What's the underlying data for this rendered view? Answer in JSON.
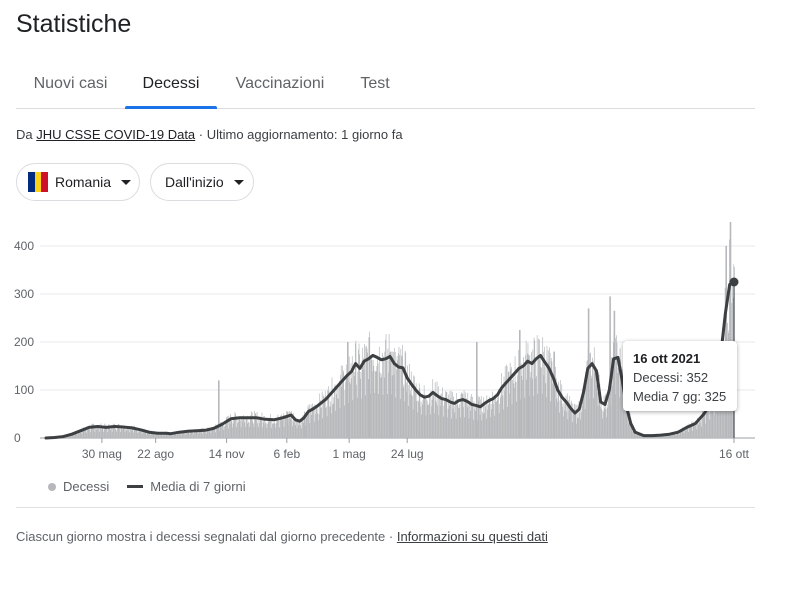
{
  "header": {
    "title": "Statistiche"
  },
  "tabs": [
    {
      "label": "Nuovi casi",
      "active": false
    },
    {
      "label": "Decessi",
      "active": true
    },
    {
      "label": "Vaccinazioni",
      "active": false
    },
    {
      "label": "Test",
      "active": false
    }
  ],
  "source": {
    "prefix": "Da ",
    "link": "JHU CSSE COVID-19 Data",
    "separator": " · ",
    "updated": "Ultimo aggiornamento: 1 giorno fa"
  },
  "filters": {
    "country": "Romania",
    "range": "Dall'inizio",
    "flag_colors": [
      "#002b7f",
      "#fcd116",
      "#ce1126"
    ]
  },
  "chart_data": {
    "type": "bar",
    "x_range": [
      "2020-03-22",
      "2021-10-16"
    ],
    "y_ticks": [
      "400",
      "300",
      "200",
      "100",
      "0"
    ],
    "ylim": [
      0,
      400
    ],
    "x_ticks": [
      "30 mag",
      "22 ago",
      "14 nov",
      "6 feb",
      "1 mag",
      "24 lug",
      "16 ott"
    ],
    "grid": true,
    "series": [
      {
        "name": "Decessi",
        "type": "bar",
        "color": "#b6b8bb"
      },
      {
        "name": "Media di 7 giorni",
        "type": "line",
        "color": "#3c4043"
      }
    ],
    "avg_points": [
      [
        0,
        0
      ],
      [
        2,
        1
      ],
      [
        4,
        3
      ],
      [
        6,
        8
      ],
      [
        8,
        15
      ],
      [
        10,
        22
      ],
      [
        12,
        24
      ],
      [
        14,
        22
      ],
      [
        16,
        24
      ],
      [
        18,
        23
      ],
      [
        20,
        21
      ],
      [
        22,
        17
      ],
      [
        24,
        12
      ],
      [
        26,
        10
      ],
      [
        28,
        10
      ],
      [
        29,
        9
      ],
      [
        31,
        12
      ],
      [
        33,
        14
      ],
      [
        35,
        15
      ],
      [
        37,
        16
      ],
      [
        39,
        20
      ],
      [
        41,
        29
      ],
      [
        43,
        40
      ],
      [
        45,
        42
      ],
      [
        47,
        42
      ],
      [
        49,
        42
      ],
      [
        51,
        39
      ],
      [
        53,
        38
      ],
      [
        55,
        42
      ],
      [
        56,
        45
      ],
      [
        57,
        48
      ],
      [
        58,
        38
      ],
      [
        59,
        35
      ],
      [
        60,
        42
      ],
      [
        61,
        55
      ],
      [
        62,
        60
      ],
      [
        63,
        66
      ],
      [
        65,
        80
      ],
      [
        67,
        100
      ],
      [
        69,
        120
      ],
      [
        70,
        130
      ],
      [
        71,
        138
      ],
      [
        72,
        155
      ],
      [
        73,
        145
      ],
      [
        74,
        160
      ],
      [
        75,
        165
      ],
      [
        76,
        172
      ],
      [
        77,
        168
      ],
      [
        78,
        163
      ],
      [
        79,
        165
      ],
      [
        80,
        170
      ],
      [
        81,
        155
      ],
      [
        82,
        148
      ],
      [
        83,
        146
      ],
      [
        84,
        125
      ],
      [
        85,
        112
      ],
      [
        86,
        100
      ],
      [
        87,
        90
      ],
      [
        88,
        85
      ],
      [
        89,
        87
      ],
      [
        90,
        95
      ],
      [
        91,
        88
      ],
      [
        92,
        82
      ],
      [
        93,
        80
      ],
      [
        94,
        75
      ],
      [
        95,
        72
      ],
      [
        96,
        78
      ],
      [
        97,
        80
      ],
      [
        98,
        76
      ],
      [
        99,
        70
      ],
      [
        100,
        68
      ],
      [
        101,
        65
      ],
      [
        102,
        72
      ],
      [
        103,
        78
      ],
      [
        104,
        82
      ],
      [
        105,
        90
      ],
      [
        106,
        105
      ],
      [
        107,
        115
      ],
      [
        108,
        125
      ],
      [
        109,
        135
      ],
      [
        110,
        145
      ],
      [
        111,
        150
      ],
      [
        112,
        160
      ],
      [
        113,
        155
      ],
      [
        114,
        165
      ],
      [
        115,
        172
      ],
      [
        116,
        158
      ],
      [
        117,
        145
      ],
      [
        118,
        125
      ],
      [
        119,
        100
      ],
      [
        120,
        85
      ],
      [
        121,
        75
      ],
      [
        122,
        62
      ],
      [
        123,
        52
      ],
      [
        124,
        60
      ],
      [
        125,
        95
      ],
      [
        126,
        145
      ],
      [
        127,
        155
      ],
      [
        128,
        140
      ],
      [
        129,
        75
      ],
      [
        130,
        70
      ],
      [
        131,
        100
      ],
      [
        132,
        165
      ],
      [
        133,
        168
      ],
      [
        134,
        120
      ],
      [
        135,
        65
      ],
      [
        136,
        30
      ],
      [
        137,
        12
      ],
      [
        139,
        5
      ],
      [
        141,
        5
      ],
      [
        143,
        6
      ],
      [
        145,
        8
      ],
      [
        147,
        12
      ],
      [
        149,
        22
      ],
      [
        151,
        30
      ],
      [
        153,
        50
      ],
      [
        155,
        80
      ],
      [
        156,
        100
      ],
      [
        157,
        180
      ],
      [
        158,
        260
      ],
      [
        159,
        320
      ],
      [
        160,
        325
      ]
    ],
    "bar_extremes": [
      [
        40,
        120
      ],
      [
        56,
        55
      ],
      [
        60,
        42
      ],
      [
        70,
        200
      ],
      [
        75,
        210
      ],
      [
        80,
        180
      ],
      [
        100,
        200
      ],
      [
        110,
        225
      ],
      [
        112,
        170
      ],
      [
        118,
        180
      ],
      [
        126,
        270
      ],
      [
        131,
        295
      ],
      [
        132,
        265
      ],
      [
        158,
        400
      ],
      [
        159,
        450
      ]
    ],
    "tooltip": {
      "date": "16 ott 2021",
      "deaths_label": "Decessi: 352",
      "avg_label": "Media 7 gg: 325"
    }
  },
  "legend": {
    "bars": "Decessi",
    "line": "Media di 7 giorni"
  },
  "footer": {
    "note": "Ciascun giorno mostra i decessi segnalati dal giorno precedente",
    "separator": " · ",
    "link": "Informazioni su questi dati"
  }
}
